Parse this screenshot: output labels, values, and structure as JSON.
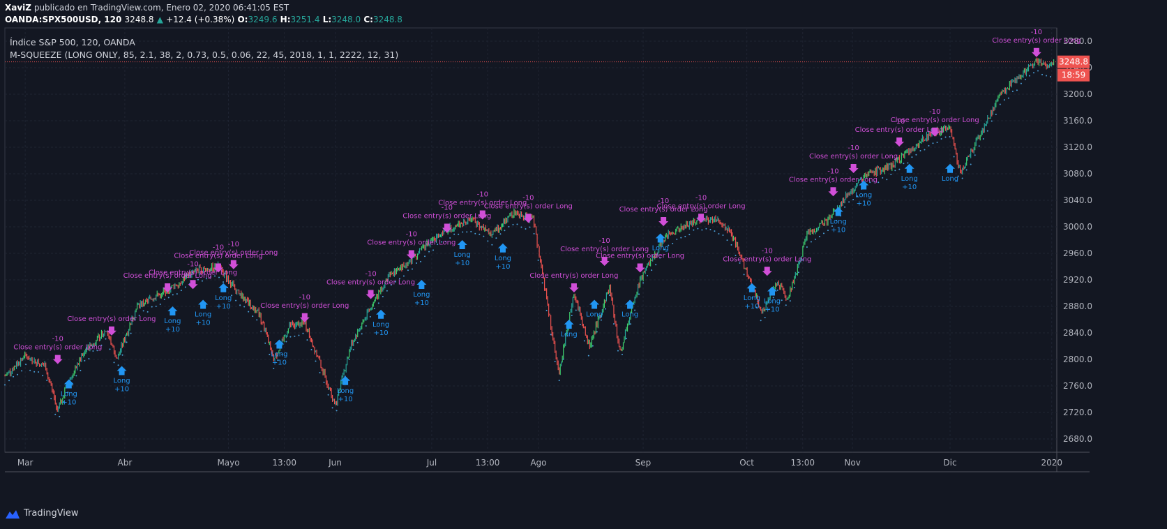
{
  "header": {
    "author": "XaviZ",
    "published_text": "publicado en TradingView.com, Enero 02, 2020 06:41:05 EST",
    "symbol": "OANDA:SPX500USD, 120",
    "last": "3248.8",
    "change": "+12.4 (+0.38%)",
    "o_label": "O:",
    "o": "3249.6",
    "h_label": "H:",
    "h": "3251.4",
    "l_label": "L:",
    "l": "3248.0",
    "c_label": "C:",
    "c": "3248.8"
  },
  "legend": {
    "title": "Índice S&P 500, 120, OANDA",
    "indicator": "M-SQUEEZE (LONG ONLY, 85, 2.1, 38, 2, 0.73, 0.5, 0.06, 22, 45, 2018, 1, 1, 2222, 12, 31)"
  },
  "footer": {
    "brand": "TradingView"
  },
  "colors": {
    "background": "#131722",
    "up": "#26a69a",
    "up_bright": "#3ecf6e",
    "down": "#ef5350",
    "signal_dots": "#4a9fd8",
    "long_marker": "#2196f3",
    "close_marker": "#d14fd8",
    "price_line": "#ef5350"
  },
  "chart_data": {
    "type": "line",
    "ylim": [
      2660,
      3300
    ],
    "yticks": [
      2680,
      2720,
      2760,
      2800,
      2840,
      2880,
      2920,
      2960,
      3000,
      3040,
      3080,
      3120,
      3160,
      3200,
      3240,
      3280
    ],
    "xticks": [
      {
        "t": 0.2,
        "label": "Mar"
      },
      {
        "t": 1.18,
        "label": "Abr"
      },
      {
        "t": 2.2,
        "label": "Mayo"
      },
      {
        "t": 2.75,
        "label": "13:00"
      },
      {
        "t": 3.25,
        "label": "Jun"
      },
      {
        "t": 4.2,
        "label": "Jul"
      },
      {
        "t": 4.75,
        "label": "13:00"
      },
      {
        "t": 5.25,
        "label": "Ago"
      },
      {
        "t": 6.28,
        "label": "Sep"
      },
      {
        "t": 7.3,
        "label": "Oct"
      },
      {
        "t": 7.85,
        "label": "13:00"
      },
      {
        "t": 8.34,
        "label": "Nov"
      },
      {
        "t": 9.3,
        "label": "Dic"
      },
      {
        "t": 10.3,
        "label": "2020"
      }
    ],
    "xlim": [
      0,
      10.35
    ],
    "price_path": [
      [
        0,
        2775
      ],
      [
        0.2,
        2805
      ],
      [
        0.4,
        2790
      ],
      [
        0.52,
        2720
      ],
      [
        0.6,
        2760
      ],
      [
        0.8,
        2815
      ],
      [
        1.0,
        2845
      ],
      [
        1.1,
        2800
      ],
      [
        1.3,
        2880
      ],
      [
        1.6,
        2905
      ],
      [
        1.9,
        2935
      ],
      [
        2.1,
        2940
      ],
      [
        2.3,
        2900
      ],
      [
        2.5,
        2870
      ],
      [
        2.65,
        2800
      ],
      [
        2.8,
        2850
      ],
      [
        2.95,
        2855
      ],
      [
        3.1,
        2795
      ],
      [
        3.25,
        2730
      ],
      [
        3.4,
        2820
      ],
      [
        3.6,
        2880
      ],
      [
        3.8,
        2930
      ],
      [
        4.0,
        2950
      ],
      [
        4.2,
        2980
      ],
      [
        4.4,
        3000
      ],
      [
        4.6,
        3010
      ],
      [
        4.8,
        2990
      ],
      [
        5.0,
        3020
      ],
      [
        5.2,
        3010
      ],
      [
        5.32,
        2900
      ],
      [
        5.45,
        2780
      ],
      [
        5.6,
        2900
      ],
      [
        5.75,
        2820
      ],
      [
        5.95,
        2910
      ],
      [
        6.05,
        2810
      ],
      [
        6.25,
        2920
      ],
      [
        6.5,
        2985
      ],
      [
        6.8,
        3010
      ],
      [
        7.0,
        3010
      ],
      [
        7.15,
        2990
      ],
      [
        7.3,
        2930
      ],
      [
        7.45,
        2870
      ],
      [
        7.6,
        2920
      ],
      [
        7.7,
        2890
      ],
      [
        7.9,
        2990
      ],
      [
        8.1,
        3010
      ],
      [
        8.3,
        3050
      ],
      [
        8.5,
        3080
      ],
      [
        8.7,
        3090
      ],
      [
        8.9,
        3115
      ],
      [
        9.1,
        3140
      ],
      [
        9.3,
        3150
      ],
      [
        9.4,
        3080
      ],
      [
        9.6,
        3140
      ],
      [
        9.8,
        3200
      ],
      [
        10.0,
        3230
      ],
      [
        10.15,
        3250
      ],
      [
        10.28,
        3240
      ],
      [
        10.33,
        3248.8
      ]
    ],
    "last_price": 3248.8,
    "countdown": "18:59",
    "signals": [
      {
        "t": 0.52,
        "p": 2792,
        "type": "close",
        "qty": "-10",
        "text": "Close entry(s) order Long"
      },
      {
        "t": 0.63,
        "p": 2770,
        "type": "long",
        "qty": "+10",
        "text": "Long"
      },
      {
        "t": 1.05,
        "p": 2835,
        "type": "close",
        "qty": "",
        "text": "Close entry(s) order Long"
      },
      {
        "t": 1.15,
        "p": 2790,
        "type": "long",
        "qty": "+10",
        "text": "Long"
      },
      {
        "t": 1.6,
        "p": 2900,
        "type": "close",
        "qty": "",
        "text": "Close entry(s) order Long"
      },
      {
        "t": 1.65,
        "p": 2880,
        "type": "long",
        "qty": "+10",
        "text": "Long"
      },
      {
        "t": 1.85,
        "p": 2905,
        "type": "close",
        "qty": "-10",
        "text": "Close entry(s) order Long"
      },
      {
        "t": 1.95,
        "p": 2890,
        "type": "long",
        "qty": "+10",
        "text": "Long"
      },
      {
        "t": 2.1,
        "p": 2930,
        "type": "close",
        "qty": "-10",
        "text": "Close entry(s) order Long"
      },
      {
        "t": 2.15,
        "p": 2915,
        "type": "long",
        "qty": "+10",
        "text": "Long"
      },
      {
        "t": 2.25,
        "p": 2935,
        "type": "close",
        "qty": "-10",
        "text": "Close entry(s) order Long"
      },
      {
        "t": 2.7,
        "p": 2830,
        "type": "long",
        "qty": "+10",
        "text": "Long"
      },
      {
        "t": 2.95,
        "p": 2855,
        "type": "close",
        "qty": "-10",
        "text": "Close entry(s) order Long"
      },
      {
        "t": 3.35,
        "p": 2775,
        "type": "long",
        "qty": "+10",
        "text": "Long"
      },
      {
        "t": 3.6,
        "p": 2890,
        "type": "close",
        "qty": "-10",
        "text": "Close entry(s) order Long"
      },
      {
        "t": 3.7,
        "p": 2875,
        "type": "long",
        "qty": "+10",
        "text": "Long"
      },
      {
        "t": 4.0,
        "p": 2950,
        "type": "close",
        "qty": "-10",
        "text": "Close entry(s) order Long"
      },
      {
        "t": 4.1,
        "p": 2920,
        "type": "long",
        "qty": "+10",
        "text": "Long"
      },
      {
        "t": 4.35,
        "p": 2990,
        "type": "close",
        "qty": "-10",
        "text": "Close entry(s) order Long"
      },
      {
        "t": 4.5,
        "p": 2980,
        "type": "long",
        "qty": "+10",
        "text": "Long"
      },
      {
        "t": 4.7,
        "p": 3010,
        "type": "close",
        "qty": "-10",
        "text": "Close entry(s) order Long"
      },
      {
        "t": 4.9,
        "p": 2975,
        "type": "long",
        "qty": "+10",
        "text": "Long"
      },
      {
        "t": 5.15,
        "p": 3005,
        "type": "close",
        "qty": "-10",
        "text": "Close entry(s) order Long"
      },
      {
        "t": 5.55,
        "p": 2860,
        "type": "long",
        "qty": "",
        "text": "Long"
      },
      {
        "t": 5.6,
        "p": 2900,
        "type": "close",
        "qty": "",
        "text": "Close entry(s) order Long"
      },
      {
        "t": 5.8,
        "p": 2890,
        "type": "long",
        "qty": "",
        "text": "Long"
      },
      {
        "t": 5.9,
        "p": 2940,
        "type": "close",
        "qty": "-10",
        "text": "Close entry(s) order Long"
      },
      {
        "t": 6.15,
        "p": 2890,
        "type": "long",
        "qty": "",
        "text": "Long"
      },
      {
        "t": 6.25,
        "p": 2930,
        "type": "close",
        "qty": "",
        "text": "Close entry(s) order Long"
      },
      {
        "t": 6.45,
        "p": 2990,
        "type": "long",
        "qty": "",
        "text": "Long"
      },
      {
        "t": 6.48,
        "p": 3000,
        "type": "close",
        "qty": "-10",
        "text": "Close entry(s) order Long"
      },
      {
        "t": 6.85,
        "p": 3005,
        "type": "close",
        "qty": "-10",
        "text": "Close entry(s) order Long"
      },
      {
        "t": 7.35,
        "p": 2915,
        "type": "long",
        "qty": "+10",
        "text": "Long"
      },
      {
        "t": 7.5,
        "p": 2925,
        "type": "close",
        "qty": "-10",
        "text": "Close entry(s) order Long"
      },
      {
        "t": 7.55,
        "p": 2910,
        "type": "long",
        "qty": "+10",
        "text": "Long"
      },
      {
        "t": 8.15,
        "p": 3045,
        "type": "close",
        "qty": "-10",
        "text": "Close entry(s) order Long"
      },
      {
        "t": 8.2,
        "p": 3030,
        "type": "long",
        "qty": "+10",
        "text": "Long"
      },
      {
        "t": 8.35,
        "p": 3080,
        "type": "close",
        "qty": "-10",
        "text": "Close entry(s) order Long"
      },
      {
        "t": 8.45,
        "p": 3070,
        "type": "long",
        "qty": "+10",
        "text": "Long"
      },
      {
        "t": 8.8,
        "p": 3120,
        "type": "close",
        "qty": "-10",
        "text": "Close entry(s) order Long"
      },
      {
        "t": 8.9,
        "p": 3095,
        "type": "long",
        "qty": "+10",
        "text": "Long"
      },
      {
        "t": 9.15,
        "p": 3135,
        "type": "close",
        "qty": "-10",
        "text": "Close entry(s) order Long"
      },
      {
        "t": 9.3,
        "p": 3095,
        "type": "long",
        "qty": "",
        "text": "Long"
      },
      {
        "t": 10.15,
        "p": 3255,
        "type": "close",
        "qty": "-10",
        "text": "Close entry(s) order Long"
      }
    ]
  }
}
